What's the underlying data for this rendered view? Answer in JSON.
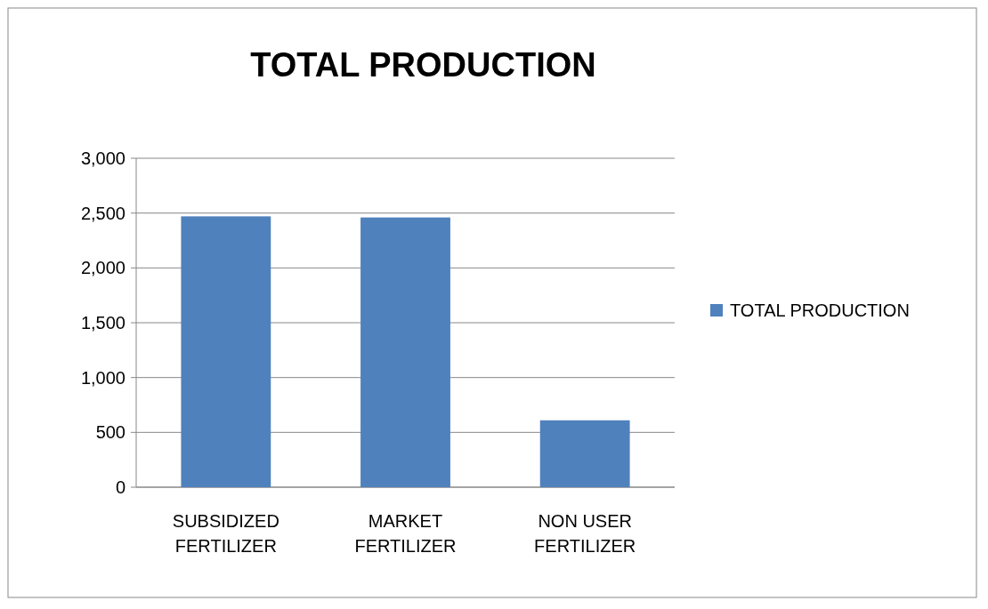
{
  "chart_data": {
    "type": "bar",
    "title": "TOTAL PRODUCTION",
    "categories": [
      "SUBSIDIZED FERTILIZER",
      "MARKET FERTILIZER",
      "NON USER FERTILIZER"
    ],
    "series": [
      {
        "name": "TOTAL PRODUCTION",
        "color": "#4f81bd",
        "values": [
          2470,
          2460,
          610
        ]
      }
    ],
    "ylim": [
      0,
      3000
    ],
    "yticks": [
      0,
      500,
      {
        "value": 1000,
        "label": "1,000"
      },
      {
        "value": 1500,
        "label": "1,500"
      },
      {
        "value": 2000,
        "label": "2,000"
      },
      {
        "value": 2500,
        "label": "2,500"
      },
      {
        "value": 3000,
        "label": "3,000"
      }
    ],
    "grid": "y",
    "legend": "right"
  }
}
